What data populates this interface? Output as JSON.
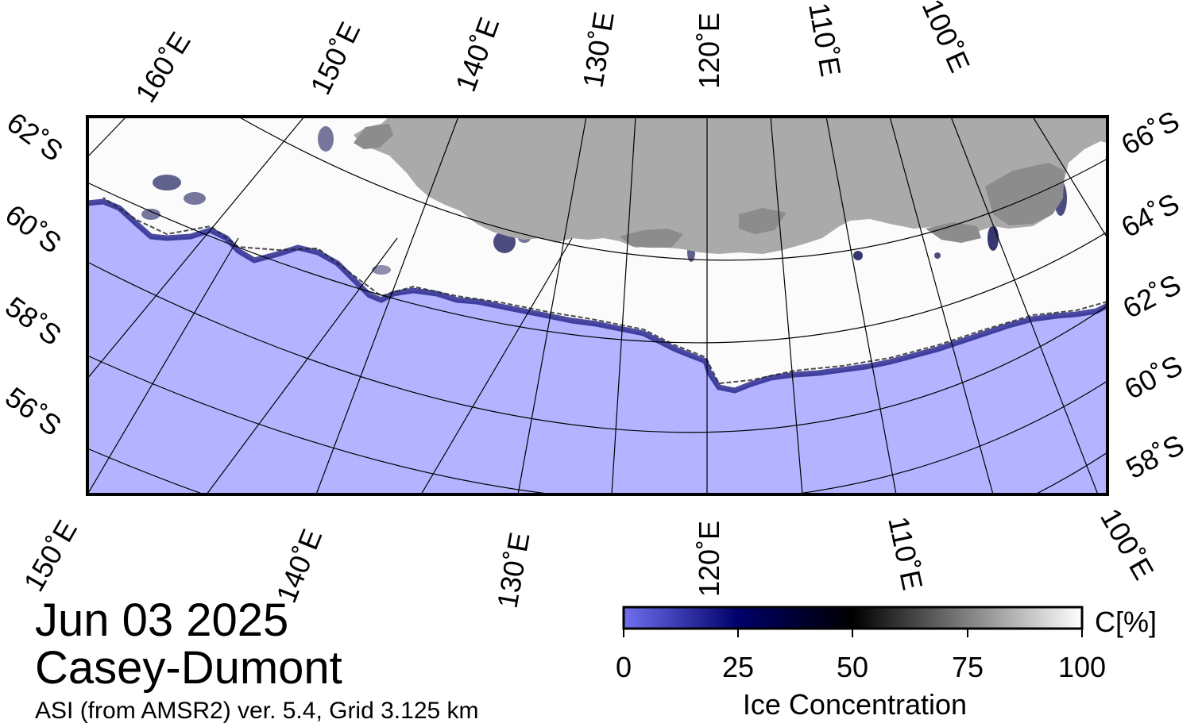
{
  "map": {
    "region_name": "Casey-Dumont",
    "date": "Jun 03 2025",
    "product": "ASI (from AMSR2) ver. 5.4,  Grid 3.125 km",
    "colors": {
      "ocean": "#b3b3ff",
      "land": "#aaaaaa",
      "ice_shelf": "#8c8c8c",
      "ice_full": "#ffffff",
      "graticule": "#000000"
    },
    "longitude_labels_top": [
      "160˚E",
      "150˚E",
      "140˚E",
      "130˚E",
      "120˚E",
      "110˚E",
      "100˚E"
    ],
    "longitude_labels_bottom": [
      "150˚E",
      "140˚E",
      "130˚E",
      "120˚E",
      "110˚E",
      "100˚E"
    ],
    "latitude_labels_left": [
      "62˚S",
      "60˚S",
      "58˚S",
      "56˚S"
    ],
    "latitude_labels_right": [
      "66˚S",
      "64˚S",
      "62˚S",
      "60˚S",
      "58˚S"
    ]
  },
  "colorbar": {
    "title": "Ice Concentration",
    "unit": "C[%]",
    "ticks": [
      "0",
      "25",
      "50",
      "75",
      "100"
    ],
    "stops": [
      "#7070f0",
      "#00006a",
      "#000000",
      "#808080",
      "#ffffff"
    ]
  }
}
